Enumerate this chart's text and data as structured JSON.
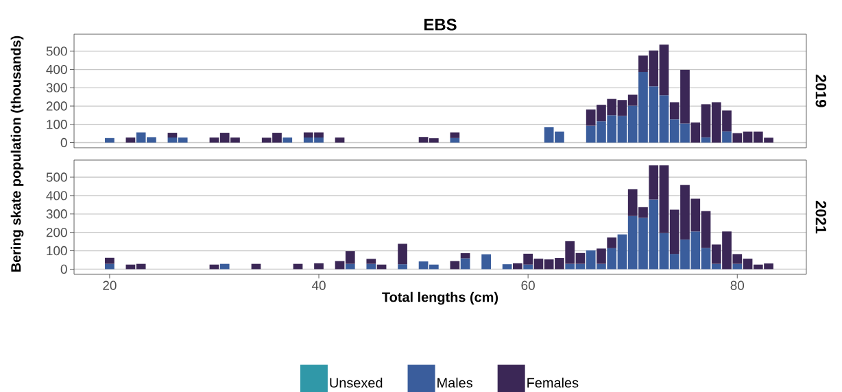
{
  "chart_data": [
    {
      "type": "bar",
      "title": "EBS",
      "annotations": [
        "2019"
      ],
      "ylabel": "Bering skate population (thousands)",
      "stacked": true,
      "grid": "y",
      "tick_labels": "y",
      "xlim": [
        16.6,
        86.6
      ],
      "ylim": [
        -28,
        593
      ],
      "yticks": [
        0,
        100,
        200,
        300,
        400,
        500
      ],
      "x": [
        20,
        22,
        23,
        24,
        26,
        27,
        30,
        31,
        32,
        35,
        36,
        37,
        39,
        40,
        42,
        50,
        51,
        53,
        62,
        63,
        66,
        67,
        68,
        69,
        70,
        71,
        72,
        73,
        74,
        75,
        76,
        77,
        78,
        79,
        80,
        81,
        82,
        83
      ],
      "series": [
        {
          "color": "#3a5d9c",
          "values": [
            25,
            null,
            56,
            30,
            28,
            28,
            null,
            null,
            null,
            null,
            null,
            28,
            28,
            28,
            null,
            null,
            null,
            25,
            84,
            60,
            93,
            117,
            150,
            146,
            202,
            387,
            308,
            259,
            128,
            105,
            null,
            29,
            null,
            61,
            null,
            null,
            null,
            null
          ]
        },
        {
          "color": "#3b2756",
          "values": [
            null,
            28,
            null,
            null,
            26,
            null,
            28,
            54,
            28,
            27,
            54,
            null,
            28,
            28,
            28,
            31,
            24,
            31,
            null,
            null,
            88,
            90,
            89,
            87,
            60,
            89,
            196,
            277,
            93,
            293,
            110,
            181,
            221,
            115,
            52,
            60,
            60,
            27
          ]
        }
      ]
    },
    {
      "type": "bar",
      "annotations": [
        "2021"
      ],
      "xlabel": "Total lengths (cm)",
      "stacked": true,
      "grid": "y",
      "legend": "bottom",
      "xlim": [
        16.6,
        86.6
      ],
      "xticks": [
        20,
        40,
        60,
        80
      ],
      "ylim": [
        -28,
        593
      ],
      "yticks": [
        0,
        100,
        200,
        300,
        400,
        500
      ],
      "x": [
        20,
        22,
        23,
        30,
        31,
        34,
        38,
        40,
        42,
        43,
        45,
        46,
        48,
        50,
        51,
        53,
        54,
        56,
        58,
        59,
        60,
        61,
        62,
        63,
        64,
        65,
        66,
        67,
        68,
        69,
        70,
        71,
        72,
        73,
        74,
        75,
        76,
        77,
        78,
        79,
        80,
        81,
        82,
        83
      ],
      "series": [
        {
          "name": "Unsexed",
          "color": "#3098a8",
          "values": [
            null,
            null,
            null,
            null,
            null,
            null,
            null,
            null,
            null,
            null,
            null,
            null,
            null,
            null,
            null,
            null,
            null,
            null,
            null,
            null,
            null,
            null,
            null,
            null,
            null,
            null,
            null,
            null,
            null,
            null,
            null,
            null,
            null,
            null,
            null,
            null,
            null,
            null,
            null,
            null,
            null,
            null,
            null,
            null
          ]
        },
        {
          "name": "Males",
          "color": "#3a5d9c",
          "values": [
            29,
            null,
            null,
            null,
            29,
            null,
            null,
            null,
            null,
            29,
            29,
            null,
            27,
            42,
            25,
            null,
            59,
            81,
            27,
            null,
            25,
            null,
            null,
            null,
            29,
            29,
            102,
            29,
            114,
            189,
            289,
            279,
            379,
            196,
            83,
            161,
            205,
            115,
            29,
            null,
            29,
            null,
            null,
            null
          ]
        },
        {
          "name": "Females",
          "color": "#3b2756",
          "values": [
            33,
            25,
            29,
            25,
            null,
            29,
            29,
            32,
            44,
            69,
            27,
            25,
            111,
            null,
            null,
            44,
            28,
            null,
            null,
            32,
            59,
            57,
            53,
            61,
            124,
            59,
            null,
            83,
            58,
            null,
            146,
            58,
            186,
            369,
            240,
            297,
            178,
            201,
            105,
            205,
            53,
            57,
            25,
            31
          ]
        }
      ]
    }
  ]
}
